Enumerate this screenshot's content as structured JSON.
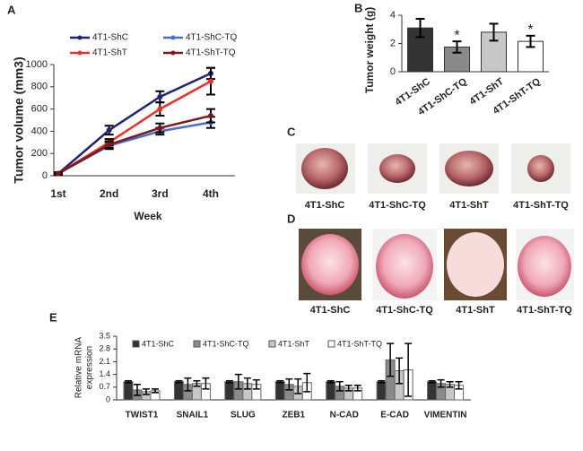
{
  "chart_data": [
    {
      "type": "line",
      "panel_label": "A",
      "x_label": "Week",
      "y_label": "Tumor volume (mm3)",
      "categories": [
        "1st",
        "2nd",
        "3rd",
        "4th"
      ],
      "ylim": [
        0,
        1000
      ],
      "yticks": [
        0,
        200,
        400,
        600,
        800,
        1000
      ],
      "series": [
        {
          "name": "4T1-ShC",
          "color": "#1f2277",
          "values": [
            20,
            410,
            710,
            920
          ],
          "errors": [
            10,
            40,
            50,
            50
          ]
        },
        {
          "name": "4T1-ShC-TQ",
          "color": "#4a6fc8",
          "values": [
            20,
            270,
            400,
            480
          ],
          "errors": [
            10,
            30,
            30,
            50
          ]
        },
        {
          "name": "4T1-ShT",
          "color": "#e8312b",
          "values": [
            20,
            300,
            600,
            850
          ],
          "errors": [
            10,
            30,
            60,
            120
          ]
        },
        {
          "name": "4T1-ShT-TQ",
          "color": "#7a1a1a",
          "values": [
            20,
            280,
            430,
            540
          ],
          "errors": [
            10,
            30,
            40,
            60
          ]
        }
      ]
    },
    {
      "type": "bar",
      "panel_label": "B",
      "y_label": "Tumor weight (g)",
      "categories": [
        "4T1-ShC",
        "4T1-ShC-TQ",
        "4T1-ShT",
        "4T1-ShT-TQ"
      ],
      "values": [
        3.1,
        1.75,
        2.8,
        2.15
      ],
      "errors": [
        0.65,
        0.4,
        0.6,
        0.4
      ],
      "colors": [
        "#333333",
        "#8a8a8a",
        "#c8c8c8",
        "#ffffff"
      ],
      "significance": [
        null,
        "*",
        null,
        "*"
      ],
      "ylim": [
        0,
        4
      ],
      "yticks": [
        0,
        2,
        4
      ]
    },
    {
      "type": "grouped_bar",
      "panel_label": "E",
      "y_label": [
        "Relative mRNA",
        "expression"
      ],
      "categories": [
        "TWIST1",
        "SNAIL1",
        "SLUG",
        "ZEB1",
        "N-CAD",
        "E-CAD",
        "VIMENTIN"
      ],
      "ylim": [
        0,
        3.5
      ],
      "yticks": [
        0,
        0.7,
        1.4,
        2.1,
        2.8,
        3.5
      ],
      "series": [
        {
          "name": "4T1-ShC",
          "color": "#333333",
          "values": [
            1.0,
            1.0,
            1.0,
            1.0,
            1.0,
            1.0,
            1.0
          ],
          "errors": [
            0.05,
            0.05,
            0.05,
            0.05,
            0.05,
            0.05,
            0.05
          ]
        },
        {
          "name": "4T1-ShC-TQ",
          "color": "#8a8a8a",
          "values": [
            0.55,
            0.85,
            1.0,
            0.85,
            0.75,
            2.2,
            0.9
          ],
          "errors": [
            0.3,
            0.35,
            0.4,
            0.3,
            0.25,
            0.9,
            0.2
          ]
        },
        {
          "name": "4T1-ShT",
          "color": "#c8c8c8",
          "values": [
            0.45,
            0.9,
            0.9,
            0.75,
            0.65,
            1.6,
            0.85
          ],
          "errors": [
            0.15,
            0.15,
            0.3,
            0.4,
            0.15,
            0.7,
            0.15
          ]
        },
        {
          "name": "4T1-ShT-TQ",
          "color": "#ffffff",
          "values": [
            0.5,
            0.9,
            0.85,
            0.95,
            0.65,
            1.65,
            0.8
          ],
          "errors": [
            0.1,
            0.3,
            0.25,
            0.5,
            0.15,
            1.45,
            0.2
          ]
        }
      ]
    }
  ],
  "photos": [
    {
      "panel_label": "C",
      "labels": [
        "4T1-ShC",
        "4T1-ShC-TQ",
        "4T1-ShT",
        "4T1-ShT-TQ"
      ]
    },
    {
      "panel_label": "D",
      "labels": [
        "4T1-ShC",
        "4T1-ShC-TQ",
        "4T1-ShT",
        "4T1-ShT-TQ"
      ]
    }
  ]
}
